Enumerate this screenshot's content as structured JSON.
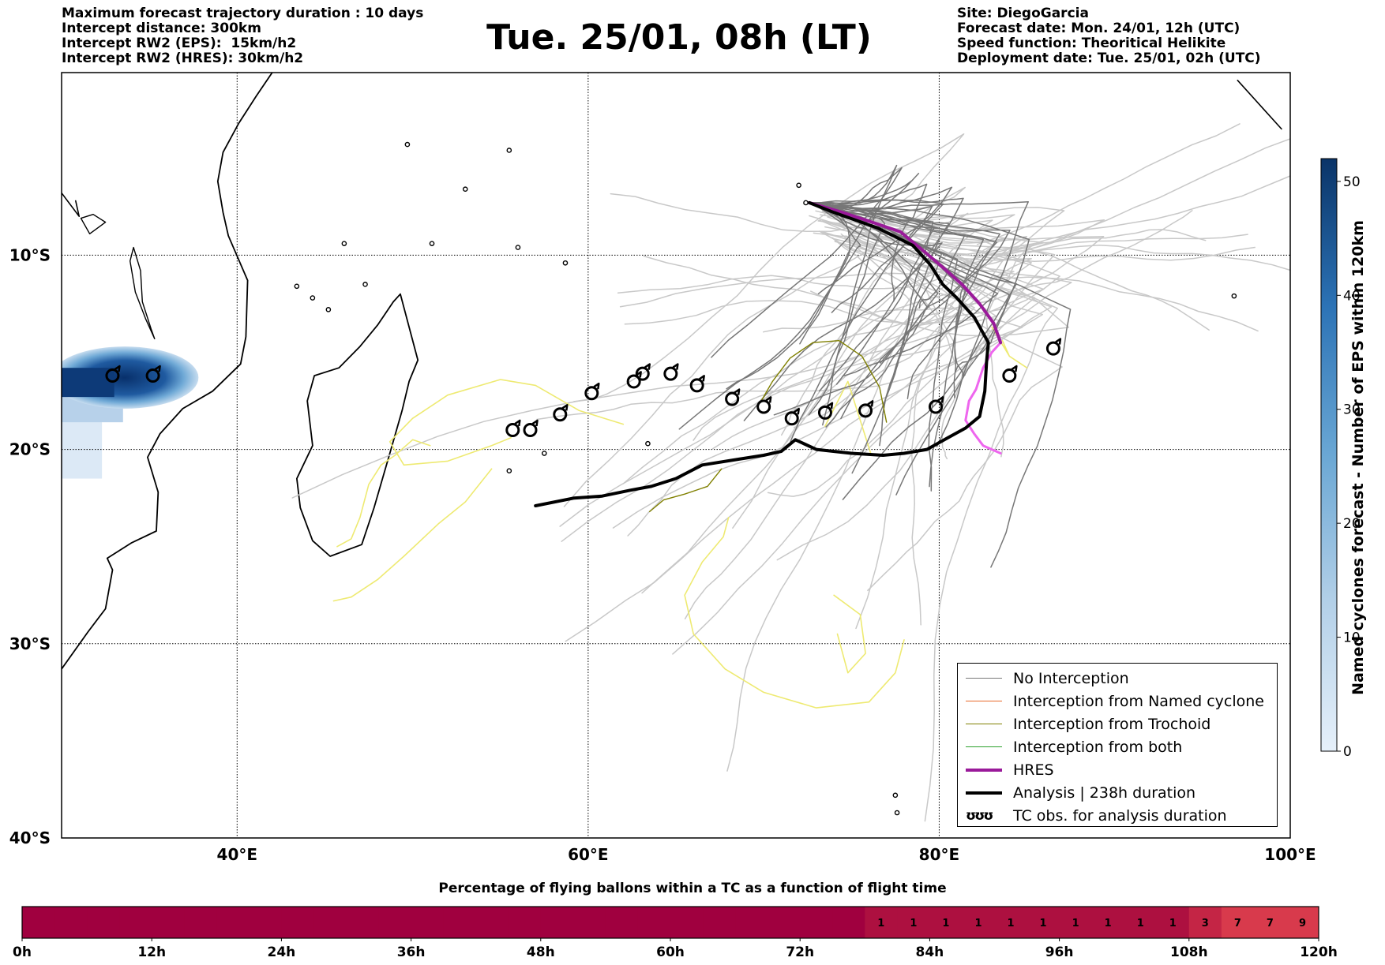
{
  "header": {
    "left_lines": [
      "Maximum forecast trajectory duration : 10 days",
      "Intercept distance: 300km",
      "Intercept RW2 (EPS):  15km/h2",
      "Intercept RW2 (HRES): 30km/h2"
    ],
    "title": "Tue. 25/01, 08h (LT)",
    "right_lines": [
      "Site: DiegoGarcia",
      "Forecast date: Mon. 24/01, 12h (UTC)",
      "Speed function: Theoritical Helikite",
      "Deployment date: Tue. 25/01, 02h (UTC)"
    ]
  },
  "map": {
    "lon_labels": [
      "40°E",
      "60°E",
      "80°E",
      "100°E"
    ],
    "lat_labels": [
      "10°S",
      "20°S",
      "30°S",
      "40°S"
    ],
    "colors": {
      "no_interception": "#777777",
      "no_interception_light": "#c8c8c8",
      "named_cyclone": "#e8692a",
      "trochoid": "#808000",
      "both": "#2ca02c",
      "hres": "#9a1a9a",
      "analysis": "#000000",
      "yellow": "#eeea72",
      "pink": "#ee66ee"
    },
    "tc_obs": [
      [
        32.9,
        -16.2
      ],
      [
        35.2,
        -16.2
      ],
      [
        55.7,
        -19.0
      ],
      [
        56.7,
        -19.0
      ],
      [
        58.4,
        -18.2
      ],
      [
        60.2,
        -17.1
      ],
      [
        62.6,
        -16.5
      ],
      [
        63.1,
        -16.1
      ],
      [
        64.7,
        -16.1
      ],
      [
        66.2,
        -16.7
      ],
      [
        68.2,
        -17.4
      ],
      [
        70.0,
        -17.8
      ],
      [
        71.6,
        -18.4
      ],
      [
        73.5,
        -18.1
      ],
      [
        75.8,
        -18.0
      ],
      [
        79.8,
        -17.8
      ],
      [
        84.0,
        -16.2
      ],
      [
        86.5,
        -14.8
      ]
    ],
    "analysis_track": [
      [
        72.6,
        -7.3
      ],
      [
        74.0,
        -7.8
      ],
      [
        76.5,
        -8.6
      ],
      [
        78.5,
        -9.5
      ],
      [
        79.5,
        -10.5
      ],
      [
        80.2,
        -11.5
      ],
      [
        81.0,
        -12.2
      ],
      [
        82.0,
        -13.2
      ],
      [
        82.8,
        -14.5
      ],
      [
        82.7,
        -15.5
      ],
      [
        82.6,
        -17.0
      ],
      [
        82.3,
        -18.3
      ],
      [
        81.5,
        -18.9
      ],
      [
        80.5,
        -19.4
      ],
      [
        79.3,
        -20.0
      ],
      [
        78.0,
        -20.2
      ],
      [
        76.8,
        -20.3
      ],
      [
        75.0,
        -20.2
      ],
      [
        73.0,
        -20.0
      ],
      [
        71.8,
        -19.5
      ],
      [
        71.0,
        -20.1
      ],
      [
        70.0,
        -20.3
      ],
      [
        68.6,
        -20.5
      ],
      [
        66.5,
        -20.8
      ],
      [
        65.0,
        -21.5
      ],
      [
        63.6,
        -21.9
      ],
      [
        62.4,
        -22.1
      ],
      [
        60.8,
        -22.4
      ],
      [
        59.2,
        -22.5
      ],
      [
        57.0,
        -22.9
      ]
    ],
    "hres_track": [
      [
        72.6,
        -7.3
      ],
      [
        74.5,
        -7.8
      ],
      [
        76.5,
        -8.4
      ],
      [
        77.8,
        -8.8
      ],
      [
        79.0,
        -9.7
      ],
      [
        80.3,
        -10.7
      ],
      [
        81.3,
        -11.5
      ],
      [
        82.3,
        -12.5
      ],
      [
        83.1,
        -13.5
      ],
      [
        83.5,
        -14.5
      ]
    ],
    "pink_track": [
      [
        83.5,
        -14.5
      ],
      [
        83.0,
        -15.0
      ],
      [
        82.5,
        -15.8
      ],
      [
        82.1,
        -16.9
      ],
      [
        81.7,
        -17.5
      ],
      [
        81.5,
        -18.5
      ],
      [
        82.0,
        -19.2
      ],
      [
        82.5,
        -19.8
      ],
      [
        83.5,
        -20.2
      ]
    ]
  },
  "colorbar": {
    "label": "Named cyclones forecast - Number of EPS within 120km",
    "ticks": [
      "0",
      "10",
      "20",
      "30",
      "40",
      "50"
    ],
    "max": 52
  },
  "legend": {
    "items": [
      {
        "label": "No Interception",
        "color": "#777777",
        "width": 1.5
      },
      {
        "label": "Interception from Named cyclone",
        "color": "#e8692a",
        "width": 1.5
      },
      {
        "label": "Interception from Trochoid",
        "color": "#808000",
        "width": 1.5
      },
      {
        "label": "Interception from both",
        "color": "#2ca02c",
        "width": 1.5
      },
      {
        "label": "HRES",
        "color": "#9a1a9a",
        "width": 4
      },
      {
        "label": "Analysis | 238h duration",
        "color": "#000000",
        "width": 4
      }
    ],
    "tc_obs_label": "TC obs. for analysis duration",
    "tc_obs_glyph": "ʊʊʊ"
  },
  "flight_bar": {
    "title": "Percentage of flying ballons within a TC as a function of flight time",
    "hour_labels": [
      "0h",
      "12h",
      "24h",
      "36h",
      "48h",
      "60h",
      "72h",
      "84h",
      "96h",
      "108h",
      "120h"
    ],
    "percent_values": [
      0,
      0,
      0,
      0,
      0,
      0,
      0,
      0,
      0,
      0,
      0,
      0,
      0,
      0,
      0,
      0,
      0,
      0,
      0,
      0,
      0,
      0,
      0,
      0,
      0,
      0,
      1,
      1,
      1,
      1,
      1,
      1,
      1,
      1,
      1,
      1,
      3,
      7,
      7,
      9
    ],
    "low_color": "#a0003f",
    "high_color": "#d84050"
  }
}
